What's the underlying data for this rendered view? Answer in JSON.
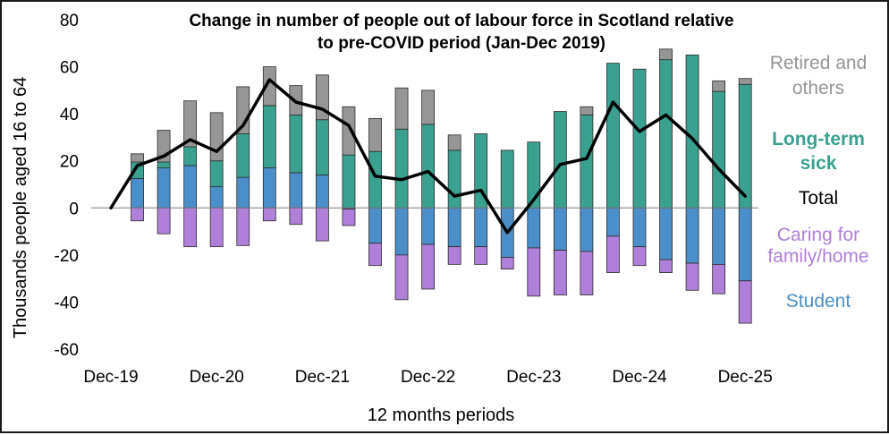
{
  "chart_data": {
    "type": "bar",
    "stacked": true,
    "title": "Change in number of people out of labour force in Scotland relative to pre-COVID period (Jan-Dec 2019)",
    "title_lines": [
      "Change in number of people out of labour force in Scotland relative",
      "to pre-COVID period (Jan-Dec 2019)"
    ],
    "xlabel": "12 months periods",
    "ylabel": "Thousands people aged 16 to 64",
    "ylim": [
      -60,
      80
    ],
    "yticks": [
      -60,
      -40,
      -20,
      0,
      20,
      40,
      60,
      80
    ],
    "x_tick_labels": [
      {
        "index": 0,
        "label": "Dec-19"
      },
      {
        "index": 4,
        "label": "Dec-20"
      },
      {
        "index": 8,
        "label": "Dec-21"
      },
      {
        "index": 12,
        "label": "Dec-22"
      },
      {
        "index": 16,
        "label": "Dec-23"
      },
      {
        "index": 20,
        "label": "Dec-24"
      },
      {
        "index": 24,
        "label": "Dec-25"
      }
    ],
    "n_periods": 25,
    "grid": false,
    "legend_placement": "right",
    "series": [
      {
        "name": "Student",
        "color": "#4a8fc9",
        "values": [
          0,
          12.5,
          17,
          18,
          9,
          13,
          17,
          15,
          14,
          -0.5,
          -15,
          -20,
          -15.5,
          -16.5,
          -16.5,
          -21,
          -17,
          -18,
          -18.5,
          -12,
          -16.5,
          -22,
          -23.5,
          -24,
          -31
        ]
      },
      {
        "name": "Caring for family/home",
        "color": "#b07fd9",
        "values": [
          0,
          -5.5,
          -11,
          -16.5,
          -16.5,
          -16,
          -5.5,
          -7,
          -14,
          -7,
          -9.5,
          -19,
          -19,
          -7.5,
          -7.5,
          -5,
          -20.5,
          -19,
          -18.5,
          -15.5,
          -8,
          -5.5,
          -11.5,
          -12.5,
          -18
        ]
      },
      {
        "name": "Long-term sick",
        "color": "#3aa191",
        "values": [
          0,
          7,
          2.5,
          8,
          11,
          18.5,
          26.5,
          24.5,
          23.5,
          22.5,
          24,
          33.5,
          35.5,
          24.5,
          31.5,
          24.5,
          28,
          41,
          39.5,
          61.5,
          59,
          63,
          65,
          49.5,
          52.5
        ]
      },
      {
        "name": "Retired and others",
        "color": "#969696",
        "values": [
          0,
          3.5,
          13.5,
          19.5,
          20.5,
          20,
          16.5,
          12.5,
          19,
          20.5,
          14,
          17.5,
          14.5,
          6.5,
          0,
          0,
          0,
          0,
          3.5,
          0,
          0,
          4.5,
          0,
          4.5,
          2.5
        ]
      },
      {
        "name": "Total",
        "color": "#000000",
        "render": "line",
        "values": [
          0,
          18,
          22,
          29,
          24,
          35,
          54.5,
          45,
          42,
          35,
          13.5,
          12,
          15.5,
          5,
          7.5,
          -10.5,
          3.5,
          18.5,
          21,
          45,
          32.5,
          39.5,
          29.5,
          16.5,
          5
        ]
      }
    ],
    "legend": [
      {
        "lines": [
          "Retired and",
          "others"
        ],
        "color": "#969696",
        "bold": false
      },
      {
        "lines": [
          "Long-term",
          "sick"
        ],
        "color": "#3aa191",
        "bold": true
      },
      {
        "lines": [
          "Total"
        ],
        "color": "#000000",
        "bold": false
      },
      {
        "lines": [
          "Caring for",
          "family/home"
        ],
        "color": "#b07fd9",
        "bold": false
      },
      {
        "lines": [
          "Student"
        ],
        "color": "#4a8fc9",
        "bold": false
      }
    ]
  }
}
